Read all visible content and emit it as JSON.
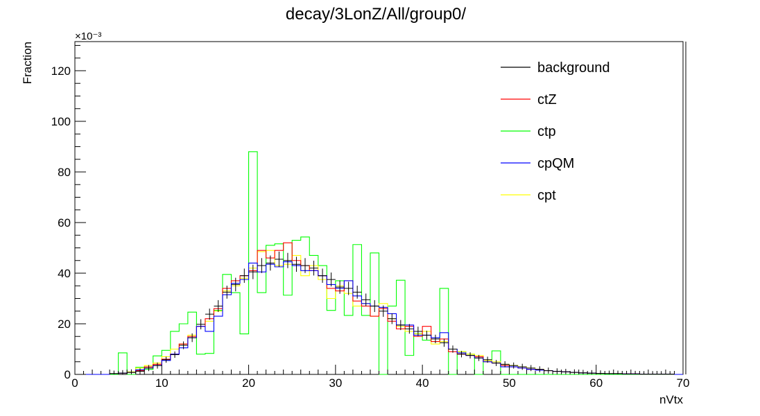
{
  "chart_data": {
    "type": "step",
    "title": "decay/3LonZ/All/group0/",
    "xlabel": "nVtx",
    "ylabel": "Fraction",
    "y_exponent": "×10⁻³",
    "xlim": [
      0,
      70
    ],
    "ylim": [
      0,
      131.5
    ],
    "x_ticks": [
      0,
      10,
      20,
      30,
      40,
      50,
      60,
      70
    ],
    "y_ticks": [
      0,
      20,
      40,
      60,
      80,
      100,
      120
    ],
    "bin_edges_start": 0,
    "bin_width": 1,
    "grid": false,
    "legend_position": "top-right",
    "series": [
      {
        "name": "background",
        "color": "#000000",
        "style": "errorbar",
        "values": [
          0,
          0,
          0,
          0,
          0.3,
          0.5,
          0.8,
          1.2,
          2.5,
          3.5,
          5.8,
          7.8,
          11.5,
          14.5,
          19.8,
          23.8,
          27,
          32.5,
          35.5,
          39,
          40.5,
          43,
          44,
          45.5,
          45,
          43.5,
          43,
          42,
          39,
          37.5,
          34.5,
          34,
          32.5,
          29.5,
          27,
          25,
          22,
          19.5,
          18,
          17,
          15.5,
          14,
          12.5,
          10,
          8,
          7.5,
          6.5,
          5.8,
          4.5,
          4,
          3.5,
          3,
          2.5,
          2,
          1.5,
          1.2,
          1,
          0.8,
          0.6,
          0.5,
          0.4,
          0.3,
          0.3,
          0.2,
          0.2,
          0.1,
          0.1,
          0.1,
          0.1,
          0
        ]
      },
      {
        "name": "ctZ",
        "color": "#ff0000",
        "style": "step",
        "values": [
          0,
          0,
          0,
          0,
          0.3,
          0.5,
          0.8,
          1.5,
          3,
          4,
          6,
          8,
          12,
          15,
          19,
          22,
          26,
          34,
          37,
          39,
          41,
          49,
          46,
          49,
          52,
          45,
          43,
          41,
          39,
          34,
          33,
          37,
          29,
          27,
          23,
          26,
          21,
          18,
          19,
          15,
          19,
          13,
          14,
          9,
          8,
          7.5,
          7,
          5,
          4.5,
          3.5,
          3,
          2.5,
          2,
          1.8,
          1.5,
          1.2,
          1,
          0.8,
          0.6,
          0.5,
          0.4,
          0.3,
          0.3,
          0.2,
          0.2,
          0.1,
          0.1,
          0.1,
          0.1,
          0
        ]
      },
      {
        "name": "ctp",
        "color": "#00ff00",
        "style": "step",
        "values": [
          0,
          0,
          0,
          0,
          0,
          8.5,
          0,
          2.8,
          2,
          7.3,
          9.5,
          17,
          20,
          24.6,
          8,
          8.3,
          25.3,
          39.5,
          32.3,
          16,
          88,
          32.3,
          51,
          51.6,
          31.3,
          53,
          54.3,
          47,
          43,
          25.3,
          37,
          23.3,
          51.3,
          23.3,
          48,
          0,
          27,
          37.2,
          7.5,
          16.1,
          13.5,
          13,
          34,
          0,
          9,
          8,
          0,
          5,
          9.3,
          0,
          0,
          0,
          0,
          0,
          0,
          0,
          0,
          0,
          0,
          0,
          0,
          0,
          0,
          0,
          0,
          0,
          0,
          0,
          0,
          0
        ]
      },
      {
        "name": "cpQM",
        "color": "#0000ff",
        "style": "step",
        "values": [
          0,
          0,
          0,
          0,
          0.3,
          0.5,
          0.8,
          1.8,
          2.5,
          3.5,
          5.5,
          8,
          10.5,
          14.5,
          19,
          17,
          23,
          31.5,
          36,
          37.5,
          44,
          40.5,
          43.5,
          42.5,
          44.5,
          43,
          41,
          41,
          39,
          35.5,
          34,
          37,
          31,
          28,
          27,
          26.5,
          24,
          19.5,
          19.5,
          15.5,
          15.5,
          14.5,
          16.5,
          10,
          8.5,
          7.5,
          6.5,
          5,
          4.5,
          3,
          3,
          2.5,
          2,
          1.7,
          1.5,
          1.2,
          1,
          0.8,
          0.6,
          0.5,
          0.4,
          0.3,
          0.3,
          0.2,
          0.2,
          0.1,
          0.1,
          0.1,
          0.1,
          0
        ]
      },
      {
        "name": "cpt",
        "color": "#ffff00",
        "style": "step",
        "values": [
          0,
          0,
          0,
          0,
          0.3,
          0.5,
          1,
          2.5,
          3.5,
          4.5,
          7,
          10,
          12,
          15.5,
          19,
          21,
          25,
          33,
          35,
          38,
          42,
          48.5,
          49,
          43,
          43.5,
          47,
          39,
          43,
          37.5,
          30,
          35,
          32,
          27,
          28,
          23,
          28,
          22,
          19,
          17,
          16,
          17,
          12,
          13,
          10,
          9,
          8,
          7.5,
          5.5,
          5,
          4,
          3.5,
          3,
          2.5,
          2,
          1.5,
          1.2,
          1,
          0.8,
          0.6,
          0.5,
          0.4,
          0.3,
          0.3,
          0.2,
          0.2,
          0.1,
          0.1,
          0.1,
          0.1,
          0
        ]
      }
    ]
  }
}
